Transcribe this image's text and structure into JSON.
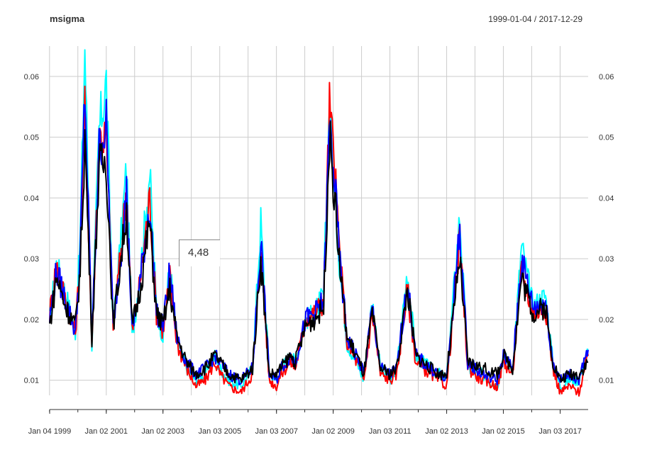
{
  "header": {
    "title": "msigma",
    "date_range": "1999-01-04 / 2017-12-29"
  },
  "tooltip": {
    "value": "4,48"
  },
  "chart_data": {
    "type": "line",
    "title": "msigma",
    "date_range": "1999-01-04 / 2017-12-29",
    "xlabel": "",
    "ylabel": "",
    "xlim": [
      "1999-01-04",
      "2017-12-29"
    ],
    "ylim": [
      0.0075,
      0.065
    ],
    "grid": true,
    "x_tick_labels": [
      "Jan 04 1999",
      "Jan 02 2001",
      "Jan 02 2003",
      "Jan 03 2005",
      "Jan 03 2007",
      "Jan 02 2009",
      "Jan 03 2011",
      "Jan 02 2013",
      "Jan 02 2015",
      "Jan 03 2017"
    ],
    "y_tick_labels": [
      "0.01",
      "0.02",
      "0.03",
      "0.04",
      "0.05",
      "0.06"
    ],
    "y_ticks": [
      0.01,
      0.02,
      0.03,
      0.04,
      0.05,
      0.06
    ],
    "series": [
      {
        "color": "#00ffff",
        "x": [
          "1999-01-04",
          "1999-04-01",
          "1999-08-01",
          "1999-12-01",
          "2000-02-01",
          "2000-04-01",
          "2000-07-01",
          "2000-10-01",
          "2001-01-02",
          "2001-04-01",
          "2001-07-01",
          "2001-09-20",
          "2001-12-01",
          "2002-03-01",
          "2002-07-15",
          "2002-10-10",
          "2003-01-02",
          "2003-04-01",
          "2003-07-01",
          "2003-11-01",
          "2004-03-01",
          "2004-07-01",
          "2004-11-01",
          "2005-01-03",
          "2005-05-01",
          "2005-10-01",
          "2006-03-01",
          "2006-06-15",
          "2006-10-01",
          "2007-01-03",
          "2007-03-01",
          "2007-07-01",
          "2007-09-01",
          "2008-01-15",
          "2008-05-01",
          "2008-09-01",
          "2008-11-15",
          "2009-01-02",
          "2009-04-01",
          "2009-07-01",
          "2009-11-01",
          "2010-02-01",
          "2010-05-20",
          "2010-09-01",
          "2011-01-03",
          "2011-04-01",
          "2011-08-15",
          "2011-12-01",
          "2012-06-01",
          "2012-10-01",
          "2013-01-02",
          "2013-06-20",
          "2013-10-01",
          "2014-04-01",
          "2014-10-15",
          "2015-01-02",
          "2015-05-01",
          "2015-08-25",
          "2016-01-20",
          "2016-06-27",
          "2016-10-01",
          "2017-01-03",
          "2017-05-01",
          "2017-09-01",
          "2017-12-29"
        ],
        "values": [
          0.02,
          0.029,
          0.024,
          0.018,
          0.033,
          0.065,
          0.016,
          0.051,
          0.059,
          0.019,
          0.032,
          0.045,
          0.017,
          0.026,
          0.044,
          0.022,
          0.017,
          0.029,
          0.016,
          0.012,
          0.01,
          0.011,
          0.014,
          0.012,
          0.01,
          0.009,
          0.012,
          0.036,
          0.011,
          0.01,
          0.012,
          0.014,
          0.013,
          0.02,
          0.021,
          0.024,
          0.056,
          0.044,
          0.028,
          0.016,
          0.013,
          0.01,
          0.023,
          0.012,
          0.01,
          0.012,
          0.028,
          0.014,
          0.012,
          0.011,
          0.01,
          0.037,
          0.012,
          0.011,
          0.009,
          0.014,
          0.012,
          0.032,
          0.022,
          0.024,
          0.013,
          0.009,
          0.01,
          0.01,
          0.015
        ]
      },
      {
        "color": "#ff0000",
        "x": [
          "1999-01-04",
          "1999-04-01",
          "1999-08-01",
          "1999-12-01",
          "2000-02-01",
          "2000-04-01",
          "2000-07-01",
          "2000-10-01",
          "2001-01-02",
          "2001-04-01",
          "2001-07-01",
          "2001-09-20",
          "2001-12-01",
          "2002-03-01",
          "2002-07-15",
          "2002-10-10",
          "2003-01-02",
          "2003-04-01",
          "2003-07-01",
          "2003-11-01",
          "2004-03-01",
          "2004-07-01",
          "2004-11-01",
          "2005-01-03",
          "2005-05-01",
          "2005-10-01",
          "2006-03-01",
          "2006-06-15",
          "2006-10-01",
          "2007-01-03",
          "2007-03-01",
          "2007-07-01",
          "2007-09-01",
          "2008-01-15",
          "2008-05-01",
          "2008-09-01",
          "2008-11-15",
          "2009-01-02",
          "2009-04-01",
          "2009-07-01",
          "2009-11-01",
          "2010-02-01",
          "2010-05-20",
          "2010-09-01",
          "2011-01-03",
          "2011-04-01",
          "2011-08-15",
          "2011-12-01",
          "2012-06-01",
          "2012-10-01",
          "2013-01-02",
          "2013-06-20",
          "2013-10-01",
          "2014-04-01",
          "2014-10-15",
          "2015-01-02",
          "2015-05-01",
          "2015-08-25",
          "2016-01-20",
          "2016-06-27",
          "2016-10-01",
          "2017-01-03",
          "2017-05-01",
          "2017-09-01",
          "2017-12-29"
        ],
        "values": [
          0.021,
          0.029,
          0.023,
          0.018,
          0.03,
          0.055,
          0.016,
          0.05,
          0.05,
          0.019,
          0.03,
          0.042,
          0.018,
          0.025,
          0.04,
          0.021,
          0.018,
          0.027,
          0.016,
          0.012,
          0.009,
          0.01,
          0.013,
          0.011,
          0.009,
          0.008,
          0.011,
          0.032,
          0.01,
          0.009,
          0.011,
          0.013,
          0.012,
          0.02,
          0.021,
          0.023,
          0.055,
          0.048,
          0.03,
          0.016,
          0.013,
          0.01,
          0.021,
          0.011,
          0.01,
          0.011,
          0.025,
          0.013,
          0.011,
          0.01,
          0.009,
          0.033,
          0.012,
          0.01,
          0.009,
          0.013,
          0.011,
          0.028,
          0.021,
          0.022,
          0.012,
          0.008,
          0.009,
          0.008,
          0.014
        ]
      },
      {
        "color": "#0000ff",
        "x": [
          "1999-01-04",
          "1999-04-01",
          "1999-08-01",
          "1999-12-01",
          "2000-02-01",
          "2000-04-01",
          "2000-07-01",
          "2000-10-01",
          "2001-01-02",
          "2001-04-01",
          "2001-07-01",
          "2001-09-20",
          "2001-12-01",
          "2002-03-01",
          "2002-07-15",
          "2002-10-10",
          "2003-01-02",
          "2003-04-01",
          "2003-07-01",
          "2003-11-01",
          "2004-03-01",
          "2004-07-01",
          "2004-11-01",
          "2005-01-03",
          "2005-05-01",
          "2005-10-01",
          "2006-03-01",
          "2006-06-15",
          "2006-10-01",
          "2007-01-03",
          "2007-03-01",
          "2007-07-01",
          "2007-09-01",
          "2008-01-15",
          "2008-05-01",
          "2008-09-01",
          "2008-11-15",
          "2009-01-02",
          "2009-04-01",
          "2009-07-01",
          "2009-11-01",
          "2010-02-01",
          "2010-05-20",
          "2010-09-01",
          "2011-01-03",
          "2011-04-01",
          "2011-08-15",
          "2011-12-01",
          "2012-06-01",
          "2012-10-01",
          "2013-01-02",
          "2013-06-20",
          "2013-10-01",
          "2014-04-01",
          "2014-10-15",
          "2015-01-02",
          "2015-05-01",
          "2015-08-25",
          "2016-01-20",
          "2016-06-27",
          "2016-10-01",
          "2017-01-03",
          "2017-05-01",
          "2017-09-01",
          "2017-12-29"
        ],
        "values": [
          0.02,
          0.028,
          0.023,
          0.018,
          0.03,
          0.058,
          0.017,
          0.048,
          0.052,
          0.019,
          0.03,
          0.041,
          0.018,
          0.025,
          0.039,
          0.021,
          0.019,
          0.028,
          0.017,
          0.013,
          0.011,
          0.012,
          0.014,
          0.013,
          0.011,
          0.01,
          0.012,
          0.033,
          0.011,
          0.01,
          0.012,
          0.014,
          0.013,
          0.02,
          0.021,
          0.023,
          0.052,
          0.046,
          0.029,
          0.017,
          0.014,
          0.011,
          0.022,
          0.012,
          0.011,
          0.012,
          0.026,
          0.014,
          0.012,
          0.011,
          0.01,
          0.035,
          0.013,
          0.011,
          0.01,
          0.014,
          0.012,
          0.03,
          0.022,
          0.023,
          0.013,
          0.01,
          0.011,
          0.01,
          0.015
        ]
      },
      {
        "color": "#000000",
        "x": [
          "1999-01-04",
          "1999-04-01",
          "1999-08-01",
          "1999-12-01",
          "2000-02-01",
          "2000-04-01",
          "2000-07-01",
          "2000-10-01",
          "2001-01-02",
          "2001-04-01",
          "2001-07-01",
          "2001-09-20",
          "2001-12-01",
          "2002-03-01",
          "2002-07-15",
          "2002-10-10",
          "2003-01-02",
          "2003-04-01",
          "2003-07-01",
          "2003-11-01",
          "2004-03-01",
          "2004-07-01",
          "2004-11-01",
          "2005-01-03",
          "2005-05-01",
          "2005-10-01",
          "2006-03-01",
          "2006-06-15",
          "2006-10-01",
          "2007-01-03",
          "2007-03-01",
          "2007-07-01",
          "2007-09-01",
          "2008-01-15",
          "2008-05-01",
          "2008-09-01",
          "2008-11-15",
          "2009-01-02",
          "2009-04-01",
          "2009-07-01",
          "2009-11-01",
          "2010-02-01",
          "2010-05-20",
          "2010-09-01",
          "2011-01-03",
          "2011-04-01",
          "2011-08-15",
          "2011-12-01",
          "2012-06-01",
          "2012-10-01",
          "2013-01-02",
          "2013-06-20",
          "2013-10-01",
          "2014-04-01",
          "2014-10-15",
          "2015-01-02",
          "2015-05-01",
          "2015-08-25",
          "2016-01-20",
          "2016-06-27",
          "2016-10-01",
          "2017-01-03",
          "2017-05-01",
          "2017-09-01",
          "2017-12-29"
        ],
        "values": [
          0.019,
          0.027,
          0.022,
          0.019,
          0.028,
          0.05,
          0.017,
          0.045,
          0.046,
          0.019,
          0.029,
          0.038,
          0.019,
          0.024,
          0.036,
          0.021,
          0.019,
          0.025,
          0.017,
          0.013,
          0.011,
          0.012,
          0.014,
          0.013,
          0.011,
          0.01,
          0.012,
          0.03,
          0.011,
          0.011,
          0.012,
          0.014,
          0.013,
          0.019,
          0.02,
          0.022,
          0.05,
          0.043,
          0.028,
          0.017,
          0.014,
          0.011,
          0.021,
          0.012,
          0.011,
          0.012,
          0.025,
          0.014,
          0.012,
          0.011,
          0.011,
          0.03,
          0.013,
          0.012,
          0.011,
          0.014,
          0.012,
          0.027,
          0.021,
          0.022,
          0.013,
          0.01,
          0.011,
          0.011,
          0.013
        ]
      }
    ]
  }
}
